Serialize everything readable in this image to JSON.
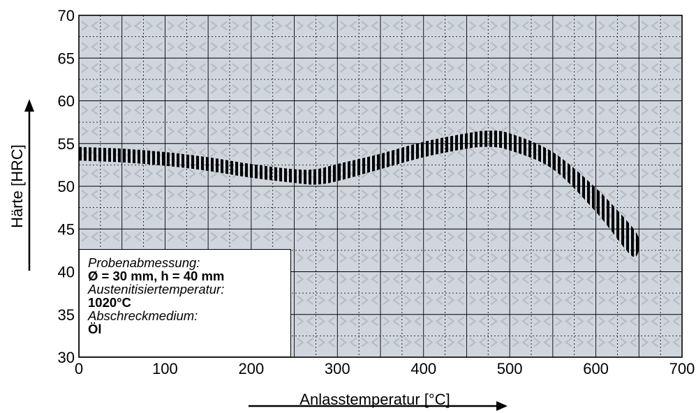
{
  "chart_data": {
    "type": "area",
    "title": "",
    "xlabel": "Anlasstemperatur [°C]",
    "ylabel": "Härte [HRC]",
    "xlim": [
      0,
      700
    ],
    "ylim": [
      30,
      70
    ],
    "x_ticks": [
      "0",
      "100",
      "200",
      "300",
      "400",
      "500",
      "600",
      "700"
    ],
    "y_ticks": [
      "30",
      "35",
      "40",
      "45",
      "50",
      "55",
      "60",
      "65",
      "70"
    ],
    "grid": true,
    "series": [
      {
        "style": "hatched band (vertical stripes)",
        "color": "#000000",
        "x": [
          0,
          50,
          100,
          150,
          200,
          250,
          275,
          300,
          350,
          400,
          450,
          475,
          500,
          550,
          600,
          640,
          650
        ],
        "upper": [
          54.6,
          54.4,
          54.0,
          53.4,
          52.6,
          52.0,
          52.0,
          52.6,
          53.8,
          55.2,
          56.2,
          56.5,
          56.2,
          54.0,
          49.8,
          45.5,
          44.0
        ],
        "lower": [
          53.0,
          52.8,
          52.4,
          51.8,
          51.0,
          50.4,
          50.2,
          50.6,
          52.0,
          53.4,
          54.4,
          54.6,
          54.2,
          52.0,
          47.0,
          42.0,
          42.4
        ]
      }
    ],
    "annotation_box": {
      "position": "bottom-left",
      "lines": [
        {
          "text": "Probenabmessung:",
          "style": "italic"
        },
        {
          "text": "Ø = 30 mm, h = 40 mm",
          "style": "bold"
        },
        {
          "text": "Austenitisiertemperatur:",
          "style": "italic"
        },
        {
          "text": "1020°C",
          "style": "bold"
        },
        {
          "text": "Abschreckmedium:",
          "style": "italic"
        },
        {
          "text": "Öl",
          "style": "bold"
        }
      ]
    },
    "colors": {
      "plot_background": "#d0d6de",
      "grid_major": "#000000",
      "grid_minor": "#000000",
      "pattern": "#b8bec6"
    }
  }
}
